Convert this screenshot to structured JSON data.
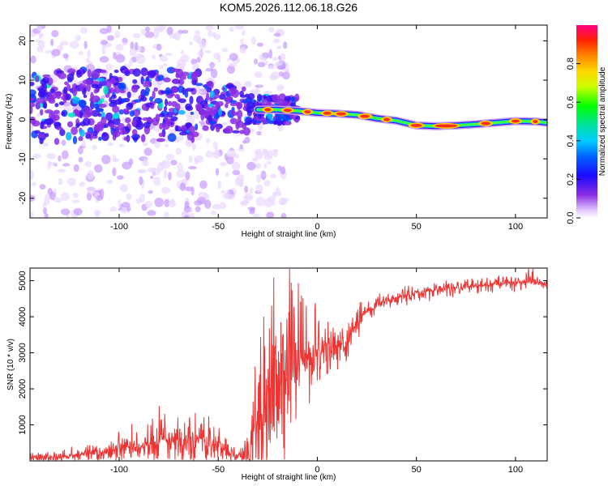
{
  "figure_title": "KOM5.2026.112.06.18.G26",
  "chart_data": [
    {
      "type": "heatmap",
      "panel": "spectrogram",
      "xlabel": "Height of straight line (km)",
      "ylabel": "Frequency (Hz)",
      "xlim": [
        -145,
        116
      ],
      "ylim": [
        -25,
        24
      ],
      "xticks": [
        -100,
        -50,
        0,
        50,
        100
      ],
      "yticks": [
        -20,
        -10,
        0,
        10,
        20
      ],
      "ridge": {
        "x": [
          -145,
          -110,
          -90,
          -70,
          -50,
          -40,
          -30,
          -20,
          -10,
          0,
          10,
          20,
          30,
          40,
          50,
          60,
          70,
          80,
          90,
          100,
          110,
          116
        ],
        "freq": [
          3,
          4,
          4,
          3.5,
          3.5,
          2.5,
          2.5,
          2.5,
          2.2,
          1.7,
          1.5,
          1.2,
          0.3,
          -0.3,
          -1.5,
          -1.7,
          -1.5,
          -1.2,
          -0.8,
          -0.4,
          -0.5,
          -0.8
        ]
      },
      "colorbar": {
        "label": "Normalized spectral amplitude",
        "ticks": [
          "0.0",
          "0.2",
          "0.4",
          "0.6",
          "0.8"
        ],
        "range": [
          0,
          1
        ]
      }
    },
    {
      "type": "line",
      "panel": "snr",
      "xlabel": "Height of straight line (km)",
      "ylabel": "SNR (10 * v/v)",
      "xlim": [
        -145,
        116
      ],
      "ylim": [
        0,
        5350
      ],
      "xticks": [
        -100,
        -50,
        0,
        50,
        100
      ],
      "yticks": [
        1000,
        2000,
        3000,
        4000,
        5000
      ],
      "line_color": "#ee3333",
      "series": [
        {
          "name": "SNR",
          "x": [
            -145,
            -130,
            -120,
            -110,
            -100,
            -90,
            -80,
            -70,
            -60,
            -50,
            -45,
            -40,
            -35,
            -30,
            -25,
            -20,
            -15,
            -10,
            -5,
            0,
            5,
            10,
            15,
            20,
            25,
            30,
            40,
            50,
            60,
            70,
            80,
            90,
            100,
            105,
            108,
            110,
            116
          ],
          "base": [
            60,
            100,
            160,
            230,
            320,
            420,
            560,
            640,
            640,
            520,
            250,
            120,
            250,
            900,
            1900,
            2100,
            2500,
            2750,
            2900,
            3050,
            3100,
            3150,
            3300,
            3800,
            4150,
            4350,
            4550,
            4650,
            4750,
            4800,
            4850,
            4900,
            4950,
            5000,
            5050,
            5000,
            4900
          ],
          "amp": [
            120,
            150,
            200,
            280,
            350,
            450,
            650,
            700,
            650,
            550,
            220,
            150,
            450,
            1500,
            2300,
            2400,
            2100,
            1700,
            1200,
            900,
            700,
            600,
            500,
            350,
            250,
            200,
            200,
            200,
            200,
            200,
            200,
            180,
            180,
            180,
            250,
            180,
            150
          ]
        }
      ]
    }
  ]
}
